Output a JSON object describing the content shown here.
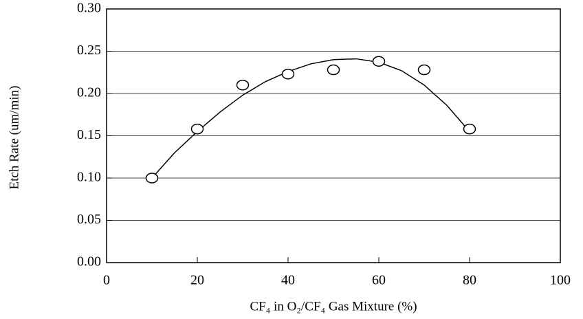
{
  "chart_data": {
    "type": "scatter",
    "x_label": "CF₄ in O₂/CF₄ Gas Mixture (%)",
    "y_label": "Etch Rate (um/min)",
    "series": [
      {
        "color": "#000000",
        "x": [
          10,
          20,
          30,
          40,
          50,
          60,
          70,
          80
        ],
        "values": [
          0.1,
          0.158,
          0.21,
          0.223,
          0.228,
          0.238,
          0.228,
          0.158
        ]
      },
      {
        "color": "#000000",
        "line": true,
        "x": [
          10,
          15,
          20,
          25,
          30,
          35,
          40,
          45,
          50,
          55,
          60,
          65,
          70,
          75,
          80
        ],
        "values": [
          0.1,
          0.13,
          0.155,
          0.178,
          0.198,
          0.214,
          0.226,
          0.235,
          0.24,
          0.241,
          0.237,
          0.227,
          0.21,
          0.186,
          0.155
        ]
      }
    ],
    "xlim": [
      0,
      100
    ],
    "xticks": [
      0,
      20,
      40,
      60,
      80,
      100
    ],
    "ylim": [
      0,
      0.3
    ],
    "yticks": [
      {
        "value": 0,
        "label": "0.00"
      },
      {
        "value": 0.05,
        "label": "0.05"
      },
      {
        "value": 0.1,
        "label": "0.10"
      },
      {
        "value": 0.15,
        "label": "0.15"
      },
      {
        "value": 0.2,
        "label": "0.20"
      },
      {
        "value": 0.25,
        "label": "0.25"
      },
      {
        "value": 0.3,
        "label": "0.30"
      }
    ],
    "grid": true
  }
}
